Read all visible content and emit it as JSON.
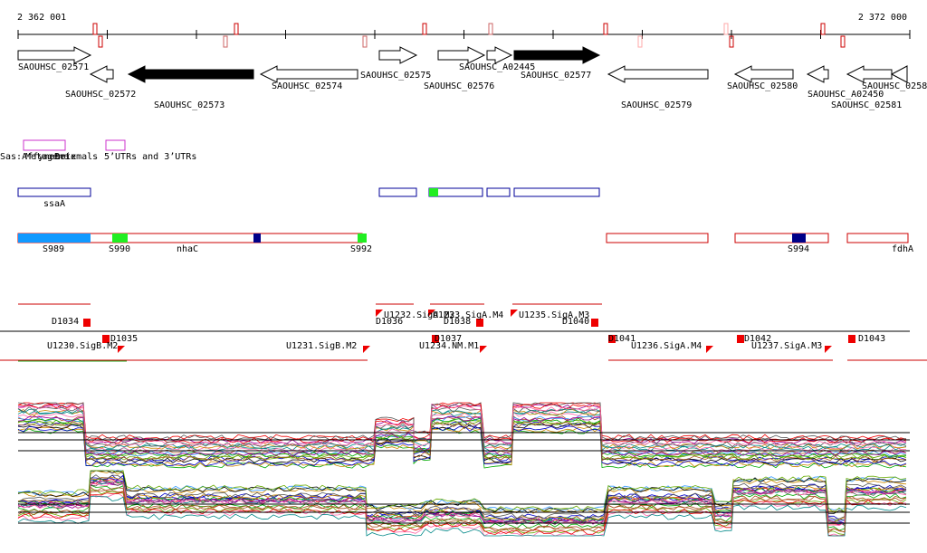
{
  "axis": {
    "start": "2 362 001",
    "end": "2 372 000"
  },
  "genes": [
    "SAOUHSC_02571",
    "SAOUHSC_02572",
    "SAOUHSC_02573",
    "SAOUHSC_02574",
    "SAOUHSC_02575",
    "SAOUHSC_02576",
    "SAOUHSC_A02445",
    "SAOUHSC_02577",
    "SAOUHSC_02579",
    "SAOUHSC_02580",
    "SAOUHSC_A02450",
    "SAOUHSC_02581",
    "SAOUHSC_0258"
  ],
  "track_labels": [
    "Sas:Affymetrix",
    "Metagene",
    "Betemals",
    "5’UTRs and 3’UTRs"
  ],
  "features": [
    "ssaA"
  ],
  "segments": [
    "S989",
    "S990",
    "nhaC",
    "S992",
    "S994",
    "fdhA"
  ],
  "regions": [
    "D1034",
    "D1035",
    "U1230.SigB.M2",
    "U1231.SigB.M2",
    "D1036",
    "U1232.SigA.M2",
    "U1233.SigA.M4",
    "D1038",
    "D1037",
    "U1234.NM.M1",
    "U1235.SigA.M3",
    "D1040",
    "D1041",
    "U1236.SigA.M4",
    "D1042",
    "U1237.SigA.M3",
    "D1043"
  ]
}
